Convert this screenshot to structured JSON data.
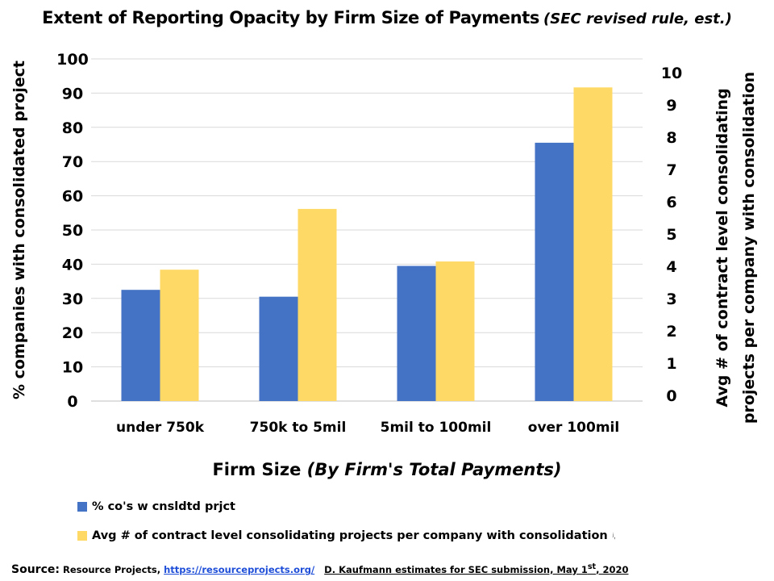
{
  "title": {
    "main": "Extent of Reporting Opacity by Firm Size of Payments",
    "sub": "(SEC revised rule, est.)"
  },
  "x_title": {
    "main": "Firm Size ",
    "italic": "(By Firm's Total Payments)"
  },
  "colors": {
    "series1": "#4472C4",
    "series2": "#FFD966",
    "grid": "#d9d9d9"
  },
  "chart_data": {
    "type": "bar",
    "categories": [
      "under 750k",
      "750k to 5mil",
      "5mil to 100mil",
      "over 100mil"
    ],
    "series": [
      {
        "name": "% co's w cnsldtd prjct",
        "axis": "left",
        "values": [
          32.5,
          30.5,
          39.5,
          75.5
        ]
      },
      {
        "name": "Avg # of contract level consolidating projects per company with consolidation",
        "axis": "right",
        "values": [
          4.0,
          5.85,
          4.25,
          9.55
        ]
      }
    ],
    "left_axis": {
      "label": "% companies with consolidated project",
      "ylim": [
        0,
        100
      ],
      "ticks": [
        0,
        10,
        20,
        30,
        40,
        50,
        60,
        70,
        80,
        90,
        100
      ]
    },
    "right_axis": {
      "label_lines": [
        "Avg # of contract level consolidating",
        "projects per company with consolidation"
      ],
      "ylim": [
        0,
        10
      ],
      "ticks": [
        0,
        1,
        2,
        3,
        4,
        5,
        6,
        7,
        8,
        9,
        10
      ]
    },
    "grid": true,
    "legend_position": "bottom-left"
  },
  "legend": {
    "item1": "% co's w cnsldtd prjct",
    "item2": "Avg # of contract level consolidating projects per company with consolidation",
    "item2_mark": "ʲ,"
  },
  "source": {
    "label": "Source:",
    "text1": " Resource Projects, ",
    "link": "https://resourceprojects.org/",
    "text2": "D. Kaufmann estimates for SEC submission, May 1",
    "sup": "st",
    "text3": ", 2020"
  }
}
